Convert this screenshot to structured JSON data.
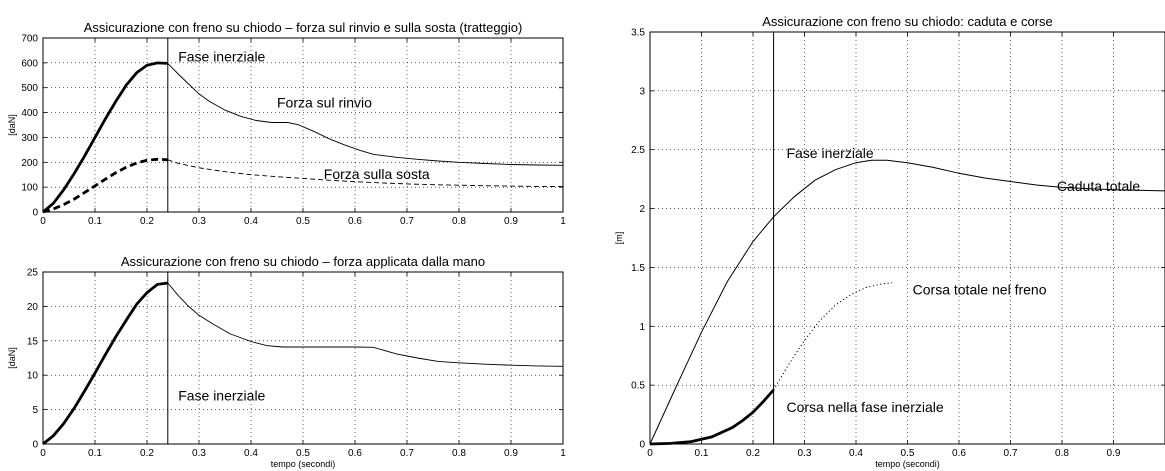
{
  "chart_data": [
    {
      "type": "line",
      "title": "Assicurazione con freno su chiodo – forza sul rinvio e sulla sosta (tratteggio)",
      "xlabel": "",
      "ylabel": "[daN]",
      "xlim": [
        0,
        1
      ],
      "ylim": [
        0,
        700
      ],
      "xticks": [
        0,
        0.1,
        0.2,
        0.3,
        0.4,
        0.5,
        0.6,
        0.7,
        0.8,
        0.9,
        1
      ],
      "yticks": [
        0,
        100,
        200,
        300,
        400,
        500,
        600,
        700
      ],
      "grid": true,
      "series": [
        {
          "name": "Forza sul rinvio",
          "style": "solid",
          "bold_until": 0.24,
          "x": [
            0,
            0.02,
            0.04,
            0.06,
            0.08,
            0.1,
            0.12,
            0.14,
            0.16,
            0.18,
            0.2,
            0.22,
            0.24,
            0.26,
            0.28,
            0.3,
            0.32,
            0.35,
            0.38,
            0.41,
            0.44,
            0.47,
            0.49,
            0.52,
            0.55,
            0.58,
            0.61,
            0.635,
            0.68,
            0.72,
            0.76,
            0.8,
            0.85,
            0.9,
            0.95,
            1.0
          ],
          "y": [
            0,
            35,
            90,
            155,
            225,
            300,
            375,
            445,
            510,
            560,
            590,
            600,
            598,
            555,
            515,
            475,
            445,
            410,
            385,
            368,
            360,
            360,
            352,
            325,
            295,
            270,
            248,
            232,
            220,
            212,
            205,
            200,
            195,
            191,
            189,
            188
          ]
        },
        {
          "name": "Forza sulla sosta",
          "style": "dashed",
          "bold_until": 0.24,
          "x": [
            0,
            0.02,
            0.04,
            0.06,
            0.08,
            0.1,
            0.12,
            0.14,
            0.16,
            0.18,
            0.2,
            0.22,
            0.24,
            0.26,
            0.3,
            0.35,
            0.4,
            0.45,
            0.5,
            0.55,
            0.6,
            0.65,
            0.7,
            0.75,
            0.8,
            0.85,
            0.9,
            0.95,
            1.0
          ],
          "y": [
            0,
            12,
            30,
            52,
            78,
            105,
            132,
            158,
            180,
            197,
            208,
            212,
            210,
            196,
            178,
            162,
            150,
            142,
            135,
            128,
            122,
            117,
            113,
            110,
            108,
            106,
            104,
            103,
            102
          ]
        }
      ],
      "annotations": [
        {
          "text": "Fase inerziale",
          "x": 0.26,
          "y": 605
        },
        {
          "text": "Forza sul rinvio",
          "x": 0.45,
          "y": 420
        },
        {
          "text": "Forza sulla sosta",
          "x": 0.54,
          "y": 132
        }
      ],
      "vline": 0.24
    },
    {
      "type": "line",
      "title": "Assicurazione con freno su chiodo – forza applicata dalla mano",
      "xlabel": "tempo (secondi)",
      "ylabel": "[daN]",
      "xlim": [
        0,
        1
      ],
      "ylim": [
        0,
        25
      ],
      "xticks": [
        0,
        0.1,
        0.2,
        0.3,
        0.4,
        0.5,
        0.6,
        0.7,
        0.8,
        0.9,
        1
      ],
      "yticks": [
        0,
        5,
        10,
        15,
        20,
        25
      ],
      "grid": true,
      "series": [
        {
          "style": "solid",
          "bold_until": 0.24,
          "x": [
            0,
            0.02,
            0.04,
            0.06,
            0.08,
            0.1,
            0.12,
            0.14,
            0.16,
            0.18,
            0.2,
            0.22,
            0.24,
            0.26,
            0.28,
            0.3,
            0.33,
            0.36,
            0.4,
            0.43,
            0.46,
            0.5,
            0.55,
            0.6,
            0.635,
            0.68,
            0.72,
            0.76,
            0.8,
            0.85,
            0.9,
            0.95,
            1.0
          ],
          "y": [
            0,
            1.2,
            3.0,
            5.2,
            7.7,
            10.3,
            13.0,
            15.6,
            18.0,
            20.3,
            22.0,
            23.2,
            23.4,
            21.6,
            20.0,
            18.7,
            17.3,
            16.0,
            14.9,
            14.3,
            14.1,
            14.1,
            14.1,
            14.1,
            14.05,
            13.1,
            12.5,
            12.0,
            11.8,
            11.6,
            11.45,
            11.35,
            11.3
          ]
        }
      ],
      "annotations": [
        {
          "text": "Fase inerziale",
          "x": 0.26,
          "y": 6.3
        }
      ],
      "vline": 0.24
    },
    {
      "type": "line",
      "title": "Assicurazione con freno su chiodo: caduta e corse",
      "xlabel": "tempo (secondi)",
      "ylabel": "[m]",
      "xlim": [
        0,
        1
      ],
      "ylim": [
        0,
        3.5
      ],
      "xticks": [
        0,
        0.1,
        0.2,
        0.3,
        0.4,
        0.5,
        0.6,
        0.7,
        0.8,
        0.9
      ],
      "yticks": [
        0,
        0.5,
        1,
        1.5,
        2,
        2.5,
        3,
        3.5
      ],
      "grid": true,
      "series": [
        {
          "name": "Caduta totale",
          "style": "solid",
          "x": [
            0,
            0.05,
            0.1,
            0.15,
            0.2,
            0.24,
            0.28,
            0.32,
            0.36,
            0.4,
            0.43,
            0.46,
            0.5,
            0.55,
            0.6,
            0.65,
            0.7,
            0.75,
            0.8,
            0.85,
            0.9,
            0.95,
            1.0
          ],
          "y": [
            0,
            0.48,
            0.95,
            1.38,
            1.72,
            1.93,
            2.1,
            2.24,
            2.33,
            2.39,
            2.41,
            2.41,
            2.39,
            2.35,
            2.3,
            2.26,
            2.23,
            2.2,
            2.18,
            2.17,
            2.16,
            2.155,
            2.15
          ]
        },
        {
          "name": "Corsa totale nel freno",
          "style": "dotted",
          "x": [
            0.24,
            0.27,
            0.3,
            0.33,
            0.36,
            0.39,
            0.42,
            0.45,
            0.47
          ],
          "y": [
            0.46,
            0.68,
            0.88,
            1.05,
            1.18,
            1.27,
            1.33,
            1.36,
            1.37
          ]
        },
        {
          "name": "Corsa nella fase inerziale",
          "style": "bold",
          "x": [
            0,
            0.04,
            0.08,
            0.12,
            0.16,
            0.18,
            0.2,
            0.22,
            0.24
          ],
          "y": [
            0,
            0.005,
            0.02,
            0.06,
            0.14,
            0.2,
            0.27,
            0.36,
            0.46
          ]
        }
      ],
      "annotations": [
        {
          "text": "Fase inerziale",
          "x": 0.265,
          "y": 2.43
        },
        {
          "text": "Caduta totale",
          "x": 0.79,
          "y": 2.15
        },
        {
          "text": "Corsa totale nel freno",
          "x": 0.51,
          "y": 1.27
        },
        {
          "text": "Corsa nella fase inerziale",
          "x": 0.265,
          "y": 0.27
        }
      ],
      "vline": 0.24
    }
  ]
}
